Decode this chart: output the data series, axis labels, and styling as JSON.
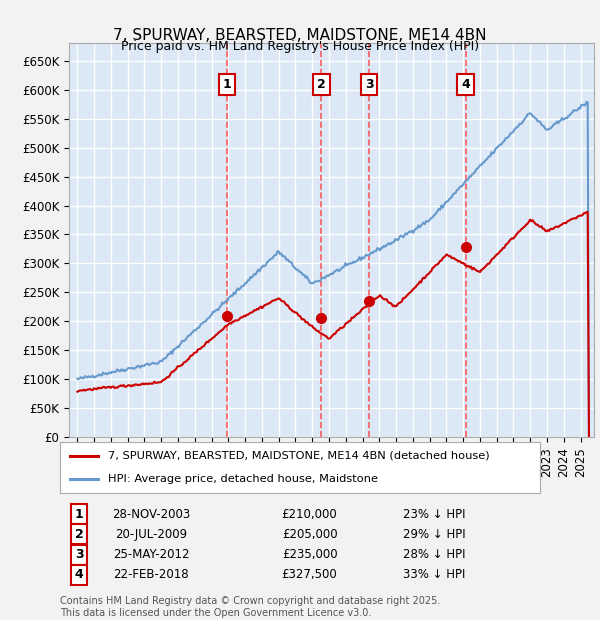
{
  "title": "7, SPURWAY, BEARSTED, MAIDSTONE, ME14 4BN",
  "subtitle": "Price paid vs. HM Land Registry's House Price Index (HPI)",
  "ylim": [
    0,
    680000
  ],
  "yticks": [
    0,
    50000,
    100000,
    150000,
    200000,
    250000,
    300000,
    350000,
    400000,
    450000,
    500000,
    550000,
    600000,
    650000
  ],
  "ytick_labels": [
    "£0",
    "£50K",
    "£100K",
    "£150K",
    "£200K",
    "£250K",
    "£300K",
    "£350K",
    "£400K",
    "£450K",
    "£500K",
    "£550K",
    "£600K",
    "£650K"
  ],
  "plot_bg_color": "#dce8f5",
  "grid_color": "#ffffff",
  "hpi_color": "#6699cc",
  "price_color": "#cc0000",
  "vline_color": "#ff4444",
  "sales": [
    {
      "date_num": 2003.91,
      "price": 210000,
      "label": "1"
    },
    {
      "date_num": 2009.55,
      "price": 205000,
      "label": "2"
    },
    {
      "date_num": 2012.4,
      "price": 235000,
      "label": "3"
    },
    {
      "date_num": 2018.14,
      "price": 327500,
      "label": "4"
    }
  ],
  "legend_line1": "7, SPURWAY, BEARSTED, MAIDSTONE, ME14 4BN (detached house)",
  "legend_line2": "HPI: Average price, detached house, Maidstone",
  "table_rows": [
    {
      "num": "1",
      "date": "28-NOV-2003",
      "price": "£210,000",
      "hpi": "23% ↓ HPI"
    },
    {
      "num": "2",
      "date": "20-JUL-2009",
      "price": "£205,000",
      "hpi": "29% ↓ HPI"
    },
    {
      "num": "3",
      "date": "25-MAY-2012",
      "price": "£235,000",
      "hpi": "28% ↓ HPI"
    },
    {
      "num": "4",
      "date": "22-FEB-2018",
      "price": "£327,500",
      "hpi": "33% ↓ HPI"
    }
  ],
  "footnote": "Contains HM Land Registry data © Crown copyright and database right 2025.\nThis data is licensed under the Open Government Licence v3.0.",
  "title_fontsize": 11,
  "tick_fontsize": 8.5,
  "xlim_start": 1994.5,
  "xlim_end": 2025.8
}
